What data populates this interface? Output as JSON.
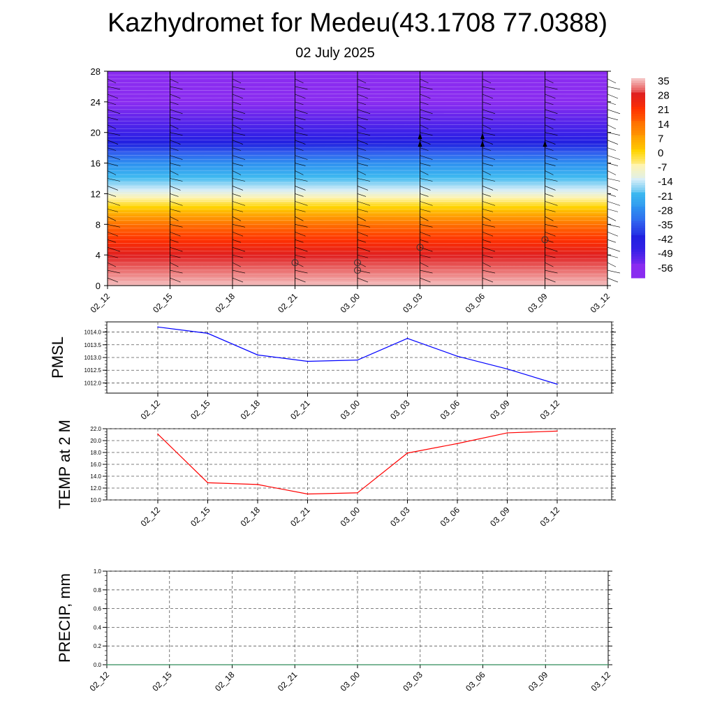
{
  "title": "Kazhydromet for Medeu(43.1708 77.0388)",
  "subtitle": "02 July 2025",
  "chart_data": [
    {
      "type": "heatmap",
      "title": "",
      "xlabel": "",
      "ylabel": "",
      "x_ticks": [
        "02_12",
        "02_15",
        "02_18",
        "02_21",
        "03_00",
        "03_03",
        "03_06",
        "03_09",
        "03_12"
      ],
      "y_ticks": [
        0,
        4,
        8,
        12,
        16,
        20,
        24,
        28
      ],
      "ylim": [
        0,
        28
      ],
      "colorbar_labels": [
        "35",
        "28",
        "21",
        "14",
        "7",
        "0",
        "-7",
        "-14",
        "-21",
        "-28",
        "-35",
        "-42",
        "-49",
        "-56"
      ],
      "colorbar_colors": [
        "#f5c0c0",
        "#e02020",
        "#ff3000",
        "#ff7000",
        "#ffa000",
        "#ffd400",
        "#fff4b0",
        "#d8eef8",
        "#3cb8f0",
        "#2e90f0",
        "#3060ee",
        "#2020e0",
        "#3a20e8",
        "#8a2cf0"
      ],
      "temperature_profile": [
        {
          "height": 0,
          "value": 35
        },
        {
          "height": 4,
          "value": 28
        },
        {
          "height": 8,
          "value": 14
        },
        {
          "height": 11.5,
          "value": -7
        },
        {
          "height": 12.5,
          "value": -14
        },
        {
          "height": 16,
          "value": -28
        },
        {
          "height": 20,
          "value": -49
        },
        {
          "height": 24,
          "value": -56
        },
        {
          "height": 28,
          "value": -56
        }
      ],
      "symbols": [
        {
          "x": "02_21",
          "y": 3,
          "shape": "circle"
        },
        {
          "x": "03_00",
          "y": 3,
          "shape": "circle"
        },
        {
          "x": "03_00",
          "y": 2,
          "shape": "circle"
        },
        {
          "x": "03_03",
          "y": 5,
          "shape": "circle"
        },
        {
          "x": "03_09",
          "y": 6,
          "shape": "circle"
        },
        {
          "x": "03_03",
          "y": 19.5,
          "shape": "triangle"
        },
        {
          "x": "03_03",
          "y": 18.5,
          "shape": "triangle"
        },
        {
          "x": "03_06",
          "y": 19.5,
          "shape": "triangle"
        },
        {
          "x": "03_06",
          "y": 18.5,
          "shape": "triangle"
        },
        {
          "x": "03_09",
          "y": 18.5,
          "shape": "triangle"
        }
      ]
    },
    {
      "type": "line",
      "ylabel": "PMSL",
      "categories": [
        "02_12",
        "02_15",
        "02_18",
        "02_21",
        "03_00",
        "03_03",
        "03_06",
        "03_09",
        "03_12"
      ],
      "values": [
        1014.2,
        1013.95,
        1013.1,
        1012.85,
        1012.9,
        1013.75,
        1013.05,
        1012.55,
        1011.95
      ],
      "ylim": [
        1011.6,
        1014.4
      ],
      "y_ticks": [
        "1012.0",
        "1012.5",
        "1013.0",
        "1013.5",
        "1014.0"
      ],
      "color": "#0000ff",
      "grid": true
    },
    {
      "type": "line",
      "ylabel": "TEMP at 2 M",
      "categories": [
        "02_12",
        "02_15",
        "02_18",
        "02_21",
        "03_00",
        "03_03",
        "03_06",
        "03_09",
        "03_12"
      ],
      "values": [
        21.1,
        12.9,
        12.6,
        11.0,
        11.2,
        17.9,
        19.5,
        21.3,
        21.6
      ],
      "ylim": [
        10.0,
        22.0
      ],
      "y_ticks": [
        "10.0",
        "12.0",
        "14.0",
        "16.0",
        "18.0",
        "20.0",
        "22.0"
      ],
      "color": "#ff0000",
      "grid": true
    },
    {
      "type": "line",
      "ylabel": "PRECIP, mm",
      "categories": [
        "02_12",
        "02_15",
        "02_18",
        "02_21",
        "03_00",
        "03_03",
        "03_06",
        "03_09",
        "03_12"
      ],
      "values": [
        0,
        0,
        0,
        0,
        0,
        0,
        0,
        0,
        0
      ],
      "ylim": [
        0.0,
        1.0
      ],
      "y_ticks": [
        "0.0",
        "0.2",
        "0.4",
        "0.6",
        "0.8",
        "1.0"
      ],
      "color": "#2e8b57",
      "grid": true
    }
  ]
}
